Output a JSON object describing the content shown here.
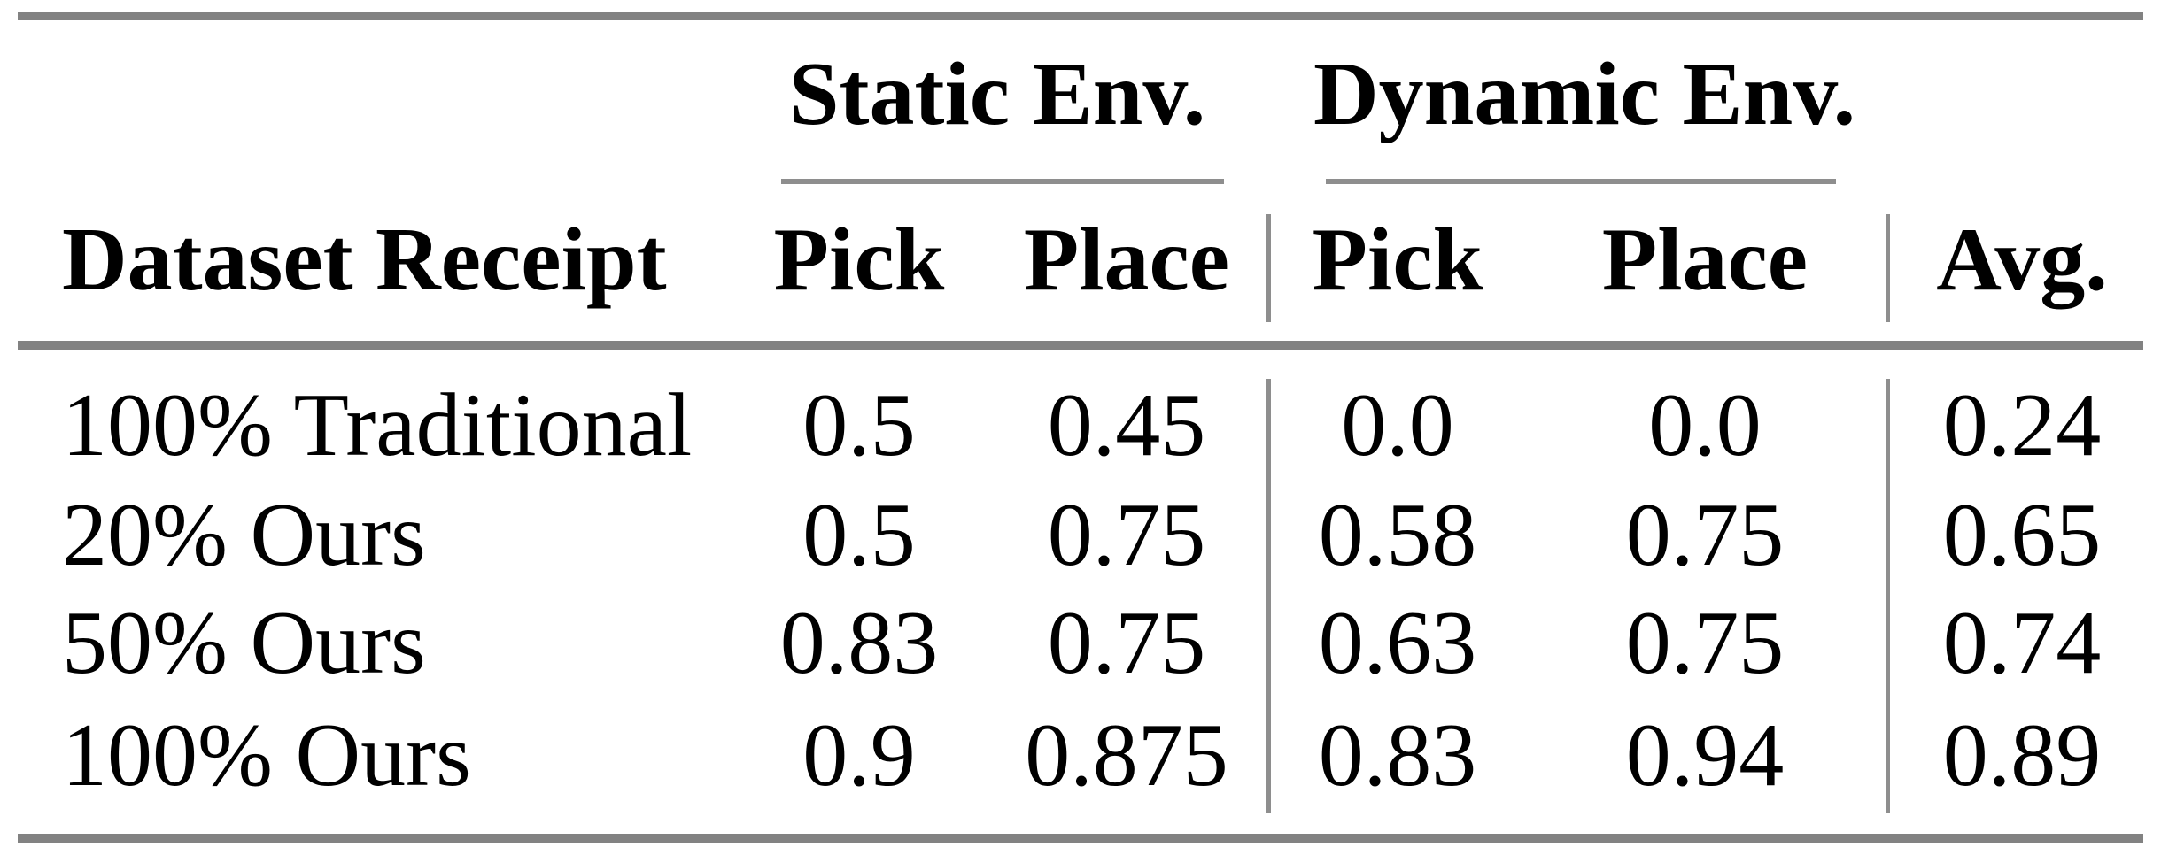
{
  "colors": {
    "background": "#ffffff",
    "text": "#000000",
    "thick_rule_gray": "#828282",
    "thin_rule_gray": "#8e8e8e"
  },
  "table": {
    "group_headers": [
      {
        "label": "Static Env."
      },
      {
        "label": "Dynamic Env."
      }
    ],
    "column_headers": {
      "dataset": "Dataset Receipt",
      "static_pick": "Pick",
      "static_place": "Place",
      "dynamic_pick": "Pick",
      "dynamic_place": "Place",
      "avg": "Avg."
    },
    "rows": [
      {
        "dataset": "100% Traditional",
        "static_pick": "0.5",
        "static_place": "0.45",
        "dynamic_pick": "0.0",
        "dynamic_place": "0.0",
        "avg": "0.24"
      },
      {
        "dataset": "20% Ours",
        "static_pick": "0.5",
        "static_place": "0.75",
        "dynamic_pick": "0.58",
        "dynamic_place": "0.75",
        "avg": "0.65"
      },
      {
        "dataset": "50% Ours",
        "static_pick": "0.83",
        "static_place": "0.75",
        "dynamic_pick": "0.63",
        "dynamic_place": "0.75",
        "avg": "0.74"
      },
      {
        "dataset": "100% Ours",
        "static_pick": "0.9",
        "static_place": "0.875",
        "dynamic_pick": "0.83",
        "dynamic_place": "0.94",
        "avg": "0.89"
      }
    ]
  },
  "chart_data": {
    "type": "table",
    "columns": [
      "Dataset Receipt",
      "Static Env. Pick",
      "Static Env. Place",
      "Dynamic Env. Pick",
      "Dynamic Env. Place",
      "Avg."
    ],
    "rows": [
      [
        "100% Traditional",
        0.5,
        0.45,
        0.0,
        0.0,
        0.24
      ],
      [
        "20% Ours",
        0.5,
        0.75,
        0.58,
        0.75,
        0.65
      ],
      [
        "50% Ours",
        0.83,
        0.75,
        0.63,
        0.75,
        0.74
      ],
      [
        "100% Ours",
        0.9,
        0.875,
        0.83,
        0.94,
        0.89
      ]
    ]
  }
}
